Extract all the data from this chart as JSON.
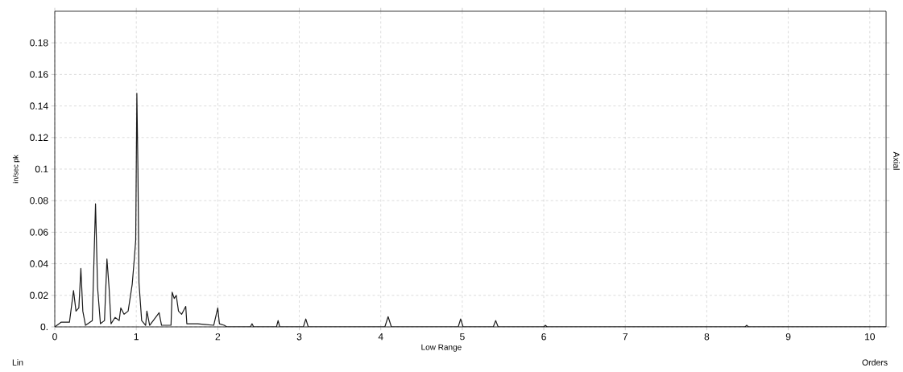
{
  "chart_data": {
    "type": "line",
    "xlabel": "Low Range",
    "ylabel": "in/sec pk",
    "annotations": [
      "Lin",
      "Orders",
      "Axial"
    ],
    "series": [
      {
        "color": "#1a1a1a",
        "x": [
          0,
          0.08,
          0.18,
          0.23,
          0.26,
          0.295,
          0.32,
          0.344,
          0.377,
          0.46,
          0.5,
          0.525,
          0.56,
          0.61,
          0.64,
          0.666,
          0.69,
          0.74,
          0.79,
          0.81,
          0.85,
          0.9,
          0.95,
          0.977,
          0.993,
          1.007,
          1.02,
          1.033,
          1.066,
          1.115,
          1.13,
          1.164,
          1.28,
          1.31,
          1.426,
          1.44,
          1.466,
          1.49,
          1.518,
          1.557,
          1.607,
          1.62,
          1.754,
          1.95,
          2.0,
          2.02,
          2.08,
          2.11,
          2.4,
          2.42,
          2.44,
          2.72,
          2.74,
          2.76,
          3.05,
          3.08,
          3.11,
          4.05,
          4.09,
          4.13,
          4.95,
          4.98,
          5.01,
          5.38,
          5.41,
          5.44,
          6.0,
          6.02,
          6.04,
          8.47,
          8.49,
          8.51,
          10.2
        ],
        "values": [
          0,
          0.003,
          0.003,
          0.023,
          0.01,
          0.012,
          0.037,
          0.01,
          0.001,
          0.004,
          0.078,
          0.025,
          0.002,
          0.004,
          0.043,
          0.025,
          0.002,
          0.006,
          0.004,
          0.012,
          0.008,
          0.01,
          0.027,
          0.044,
          0.055,
          0.148,
          0.1,
          0.028,
          0.004,
          0.001,
          0.01,
          0.001,
          0.009,
          0.001,
          0.001,
          0.022,
          0.018,
          0.02,
          0.01,
          0.008,
          0.013,
          0.002,
          0.002,
          0.001,
          0.012,
          0.002,
          0.001,
          0,
          0,
          0.002,
          0,
          0,
          0.004,
          0,
          0,
          0.005,
          0,
          0,
          0.0065,
          0,
          0,
          0.005,
          0,
          0,
          0.004,
          0,
          0,
          0.001,
          0,
          0,
          0.001,
          0,
          0
        ]
      }
    ],
    "xlim": [
      0,
      10.2
    ],
    "ylim": [
      0,
      0.2
    ],
    "xticks": [
      0,
      1,
      2,
      3,
      4,
      5,
      6,
      7,
      8,
      9,
      10
    ],
    "yticks": [
      {
        "value": 0,
        "label": "0."
      },
      0.02,
      0.04,
      0.06,
      0.08,
      0.1,
      0.12,
      0.14,
      0.16,
      0.18
    ],
    "grid": true,
    "line_style": "solid"
  }
}
